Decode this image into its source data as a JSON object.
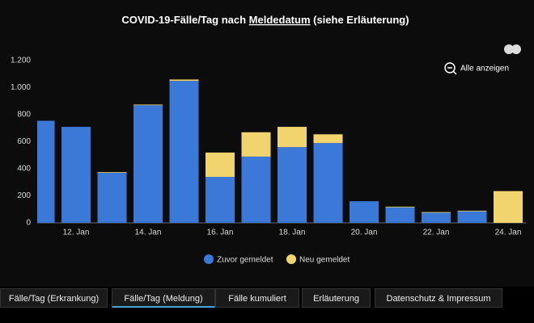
{
  "chart_data": {
    "type": "bar",
    "stacked": true,
    "title": [
      "COVID-19-Fälle/Tag nach ",
      "Meldedatum",
      " (siehe Erläuterung)"
    ],
    "zoom_button": "Alle anzeigen",
    "categories": [
      null,
      "12. Jan",
      null,
      "14. Jan",
      null,
      "16. Jan",
      null,
      "18. Jan",
      null,
      "20. Jan",
      null,
      "22. Jan",
      null,
      "24. Jan"
    ],
    "series": [
      {
        "name": "Zuvor gemeldet",
        "color": "#3b79d9",
        "values": [
          755,
          710,
          370,
          870,
          1050,
          340,
          490,
          560,
          590,
          160,
          115,
          75,
          85,
          0
        ]
      },
      {
        "name": "Neu gemeldet",
        "color": "#f1d46e",
        "values": [
          0,
          0,
          5,
          5,
          10,
          180,
          180,
          150,
          65,
          0,
          5,
          5,
          5,
          235
        ]
      }
    ],
    "ylim": [
      0,
      1200
    ],
    "yticks": [
      0,
      200,
      400,
      600,
      800,
      {
        "value": 1000,
        "label": "1.000"
      },
      {
        "value": 1200,
        "label": "1.200"
      }
    ],
    "grid": false
  },
  "tabs": [
    "Fälle/Tag (Erkrankung)",
    "Fälle/Tag (Meldung)",
    "Fälle kumuliert",
    "Erläuterung",
    "Datenschutz & Impressum"
  ],
  "active_tab": 1
}
